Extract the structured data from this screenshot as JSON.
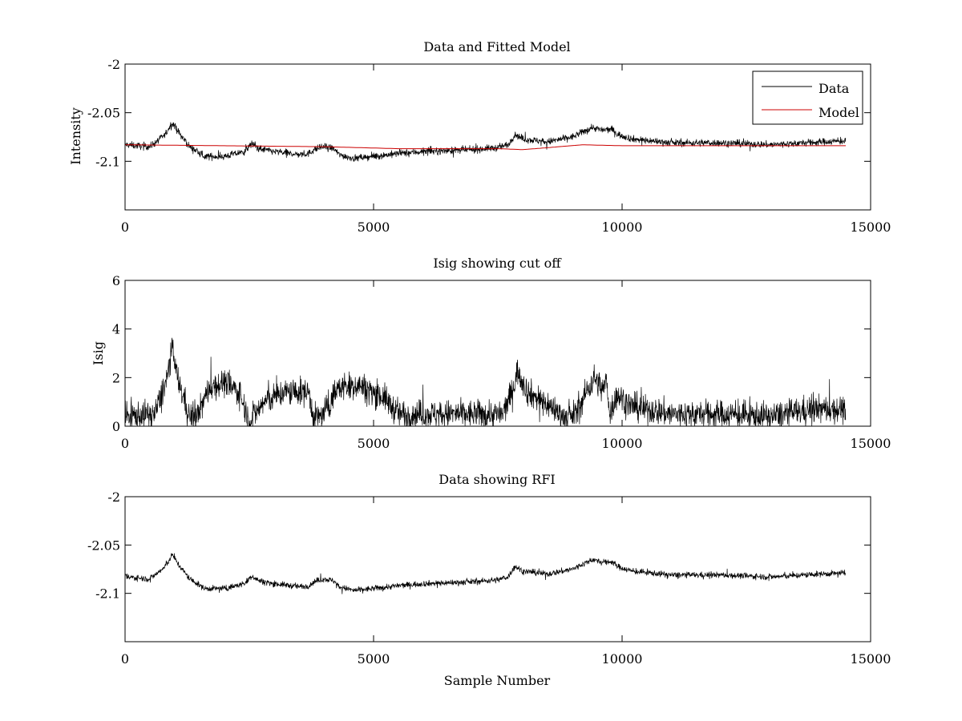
{
  "colors": {
    "data": "#000000",
    "model": "#cc0000",
    "axes": "#000000",
    "background": "#ffffff"
  },
  "chart_data": [
    {
      "type": "line",
      "title": "Data and Fitted Model",
      "xlabel": "",
      "ylabel": "Intensity",
      "xlim": [
        0,
        15000
      ],
      "ylim": [
        -2.15,
        -2.0
      ],
      "xticks": [
        0,
        5000,
        10000,
        15000
      ],
      "xtick_labels": [
        "0",
        "5000",
        "10000",
        "15000"
      ],
      "yticks": [
        -2.1,
        -2.05,
        -2.0
      ],
      "ytick_labels": [
        "-2.1",
        "-2.05",
        "-2"
      ],
      "legend": {
        "placement": "top-right",
        "entries": [
          "Data",
          "Model"
        ]
      },
      "grid": false,
      "series": [
        {
          "name": "Data",
          "color": "#000000",
          "noise": 0.0035,
          "x": [
            0,
            500,
            800,
            950,
            1100,
            1300,
            1600,
            2000,
            2400,
            2550,
            2700,
            3000,
            3500,
            3700,
            3800,
            4000,
            4200,
            4300,
            4600,
            5000,
            5500,
            6000,
            6500,
            7000,
            7500,
            7700,
            7850,
            8000,
            8500,
            9000,
            9200,
            9400,
            9600,
            9800,
            9900,
            10200,
            11000,
            12000,
            13000,
            14000,
            14500
          ],
          "y": [
            -2.083,
            -2.085,
            -2.073,
            -2.06,
            -2.072,
            -2.085,
            -2.095,
            -2.095,
            -2.09,
            -2.082,
            -2.087,
            -2.09,
            -2.093,
            -2.092,
            -2.088,
            -2.085,
            -2.087,
            -2.093,
            -2.097,
            -2.095,
            -2.092,
            -2.09,
            -2.089,
            -2.088,
            -2.086,
            -2.083,
            -2.072,
            -2.077,
            -2.08,
            -2.075,
            -2.07,
            -2.065,
            -2.068,
            -2.067,
            -2.072,
            -2.077,
            -2.081,
            -2.081,
            -2.083,
            -2.08,
            -2.079
          ]
        },
        {
          "name": "Model",
          "color": "#cc0000",
          "noise": 0,
          "x": [
            0,
            2000,
            4000,
            5500,
            7500,
            8000,
            8500,
            9200,
            10000,
            12000,
            14500
          ],
          "y": [
            -2.083,
            -2.084,
            -2.085,
            -2.087,
            -2.087,
            -2.088,
            -2.086,
            -2.083,
            -2.084,
            -2.084,
            -2.084
          ]
        }
      ]
    },
    {
      "type": "line",
      "title": "Isig showing cut off",
      "xlabel": "",
      "ylabel": "Isig",
      "xlim": [
        0,
        15000
      ],
      "ylim": [
        0,
        6
      ],
      "xticks": [
        0,
        5000,
        10000,
        15000
      ],
      "xtick_labels": [
        "0",
        "5000",
        "10000",
        "15000"
      ],
      "yticks": [
        0,
        2,
        4,
        6
      ],
      "ytick_labels": [
        "0",
        "2",
        "4",
        "6"
      ],
      "grid": false,
      "series": [
        {
          "color": "#000000",
          "noise": 0.55,
          "x": [
            0,
            600,
            850,
            950,
            1050,
            1300,
            1450,
            1700,
            2000,
            2300,
            2500,
            2800,
            3200,
            3700,
            3800,
            4000,
            4200,
            4300,
            4700,
            5200,
            5500,
            6000,
            7000,
            7600,
            7800,
            7900,
            8100,
            8500,
            8900,
            9100,
            9300,
            9450,
            9600,
            9700,
            9750,
            9900,
            10200,
            11000,
            12000,
            13000,
            13800,
            14500
          ],
          "y": [
            0.4,
            0.5,
            2.0,
            3.2,
            2.0,
            0.4,
            0.4,
            1.6,
            1.8,
            1.4,
            0.2,
            1.0,
            1.4,
            1.4,
            0.3,
            0.5,
            1.3,
            1.6,
            1.7,
            1.2,
            0.5,
            0.5,
            0.5,
            0.5,
            1.5,
            2.3,
            1.4,
            0.9,
            0.3,
            0.6,
            1.5,
            2.0,
            1.5,
            1.8,
            0.5,
            1.3,
            0.8,
            0.5,
            0.5,
            0.4,
            0.7,
            0.7
          ]
        }
      ]
    },
    {
      "type": "line",
      "title": "Data showing RFI",
      "xlabel": "Sample Number",
      "ylabel": "",
      "xlim": [
        0,
        15000
      ],
      "ylim": [
        -2.15,
        -2.0
      ],
      "xticks": [
        0,
        5000,
        10000,
        15000
      ],
      "xtick_labels": [
        "0",
        "5000",
        "10000",
        "15000"
      ],
      "yticks": [
        -2.1,
        -2.05,
        -2.0
      ],
      "ytick_labels": [
        "-2.1",
        "-2.05",
        "-2"
      ],
      "grid": false,
      "series": [
        {
          "color": "#000000",
          "noise": 0.003,
          "x": [
            0,
            500,
            800,
            950,
            1100,
            1300,
            1600,
            2000,
            2400,
            2550,
            2700,
            3000,
            3500,
            3700,
            3800,
            4000,
            4200,
            4300,
            4600,
            5000,
            5500,
            6000,
            6500,
            7000,
            7500,
            7700,
            7850,
            8000,
            8500,
            9000,
            9200,
            9400,
            9600,
            9800,
            9900,
            10200,
            11000,
            12000,
            13000,
            14000,
            14500
          ],
          "y": [
            -2.083,
            -2.085,
            -2.073,
            -2.06,
            -2.072,
            -2.085,
            -2.095,
            -2.095,
            -2.09,
            -2.082,
            -2.087,
            -2.09,
            -2.093,
            -2.092,
            -2.088,
            -2.085,
            -2.087,
            -2.093,
            -2.097,
            -2.095,
            -2.092,
            -2.09,
            -2.089,
            -2.088,
            -2.086,
            -2.083,
            -2.072,
            -2.077,
            -2.08,
            -2.075,
            -2.07,
            -2.065,
            -2.068,
            -2.067,
            -2.072,
            -2.077,
            -2.081,
            -2.081,
            -2.083,
            -2.08,
            -2.079
          ]
        }
      ]
    }
  ]
}
